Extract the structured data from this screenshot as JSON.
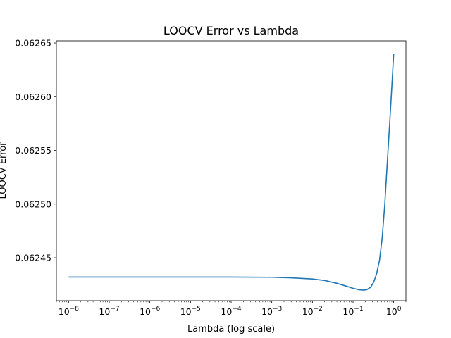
{
  "chart_data": {
    "type": "line",
    "title": "LOOCV Error vs Lambda",
    "xlabel": "Lambda (log scale)",
    "ylabel": "LOOCV Error",
    "x_scale": "log",
    "xlim": [
      5e-09,
      2.0
    ],
    "ylim": [
      0.06241,
      0.062652
    ],
    "grid": false,
    "legend": "none",
    "line_color": "#1f77b4",
    "x_ticks": [
      {
        "value": 1e-08,
        "label": "10",
        "exp": "−8"
      },
      {
        "value": 1e-07,
        "label": "10",
        "exp": "−7"
      },
      {
        "value": 1e-06,
        "label": "10",
        "exp": "−6"
      },
      {
        "value": 1e-05,
        "label": "10",
        "exp": "−5"
      },
      {
        "value": 0.0001,
        "label": "10",
        "exp": "−4"
      },
      {
        "value": 0.001,
        "label": "10",
        "exp": "−3"
      },
      {
        "value": 0.01,
        "label": "10",
        "exp": "−2"
      },
      {
        "value": 0.1,
        "label": "10",
        "exp": "−1"
      },
      {
        "value": 1,
        "label": "10",
        "exp": "0"
      }
    ],
    "y_ticks": [
      {
        "value": 0.06245,
        "label": "0.06245"
      },
      {
        "value": 0.0625,
        "label": "0.06250"
      },
      {
        "value": 0.06255,
        "label": "0.06255"
      },
      {
        "value": 0.0626,
        "label": "0.06260"
      },
      {
        "value": 0.06265,
        "label": "0.06265"
      }
    ],
    "series": [
      {
        "points": [
          [
            1e-08,
            0.062432
          ],
          [
            1e-06,
            0.062432
          ],
          [
            0.0001,
            0.062432
          ],
          [
            0.001,
            0.0624318
          ],
          [
            0.003,
            0.0624313
          ],
          [
            0.01,
            0.0624302
          ],
          [
            0.02,
            0.0624288
          ],
          [
            0.04,
            0.0624262
          ],
          [
            0.07,
            0.0624234
          ],
          [
            0.1,
            0.0624215
          ],
          [
            0.14,
            0.0624202
          ],
          [
            0.18,
            0.0624198
          ],
          [
            0.22,
            0.0624203
          ],
          [
            0.27,
            0.0624225
          ],
          [
            0.32,
            0.062427
          ],
          [
            0.38,
            0.062435
          ],
          [
            0.45,
            0.062448
          ],
          [
            0.52,
            0.062468
          ],
          [
            0.6,
            0.062498
          ],
          [
            0.7,
            0.06254
          ],
          [
            0.8,
            0.062576
          ],
          [
            0.9,
            0.062609
          ],
          [
            1.0,
            0.06264
          ]
        ]
      }
    ]
  }
}
